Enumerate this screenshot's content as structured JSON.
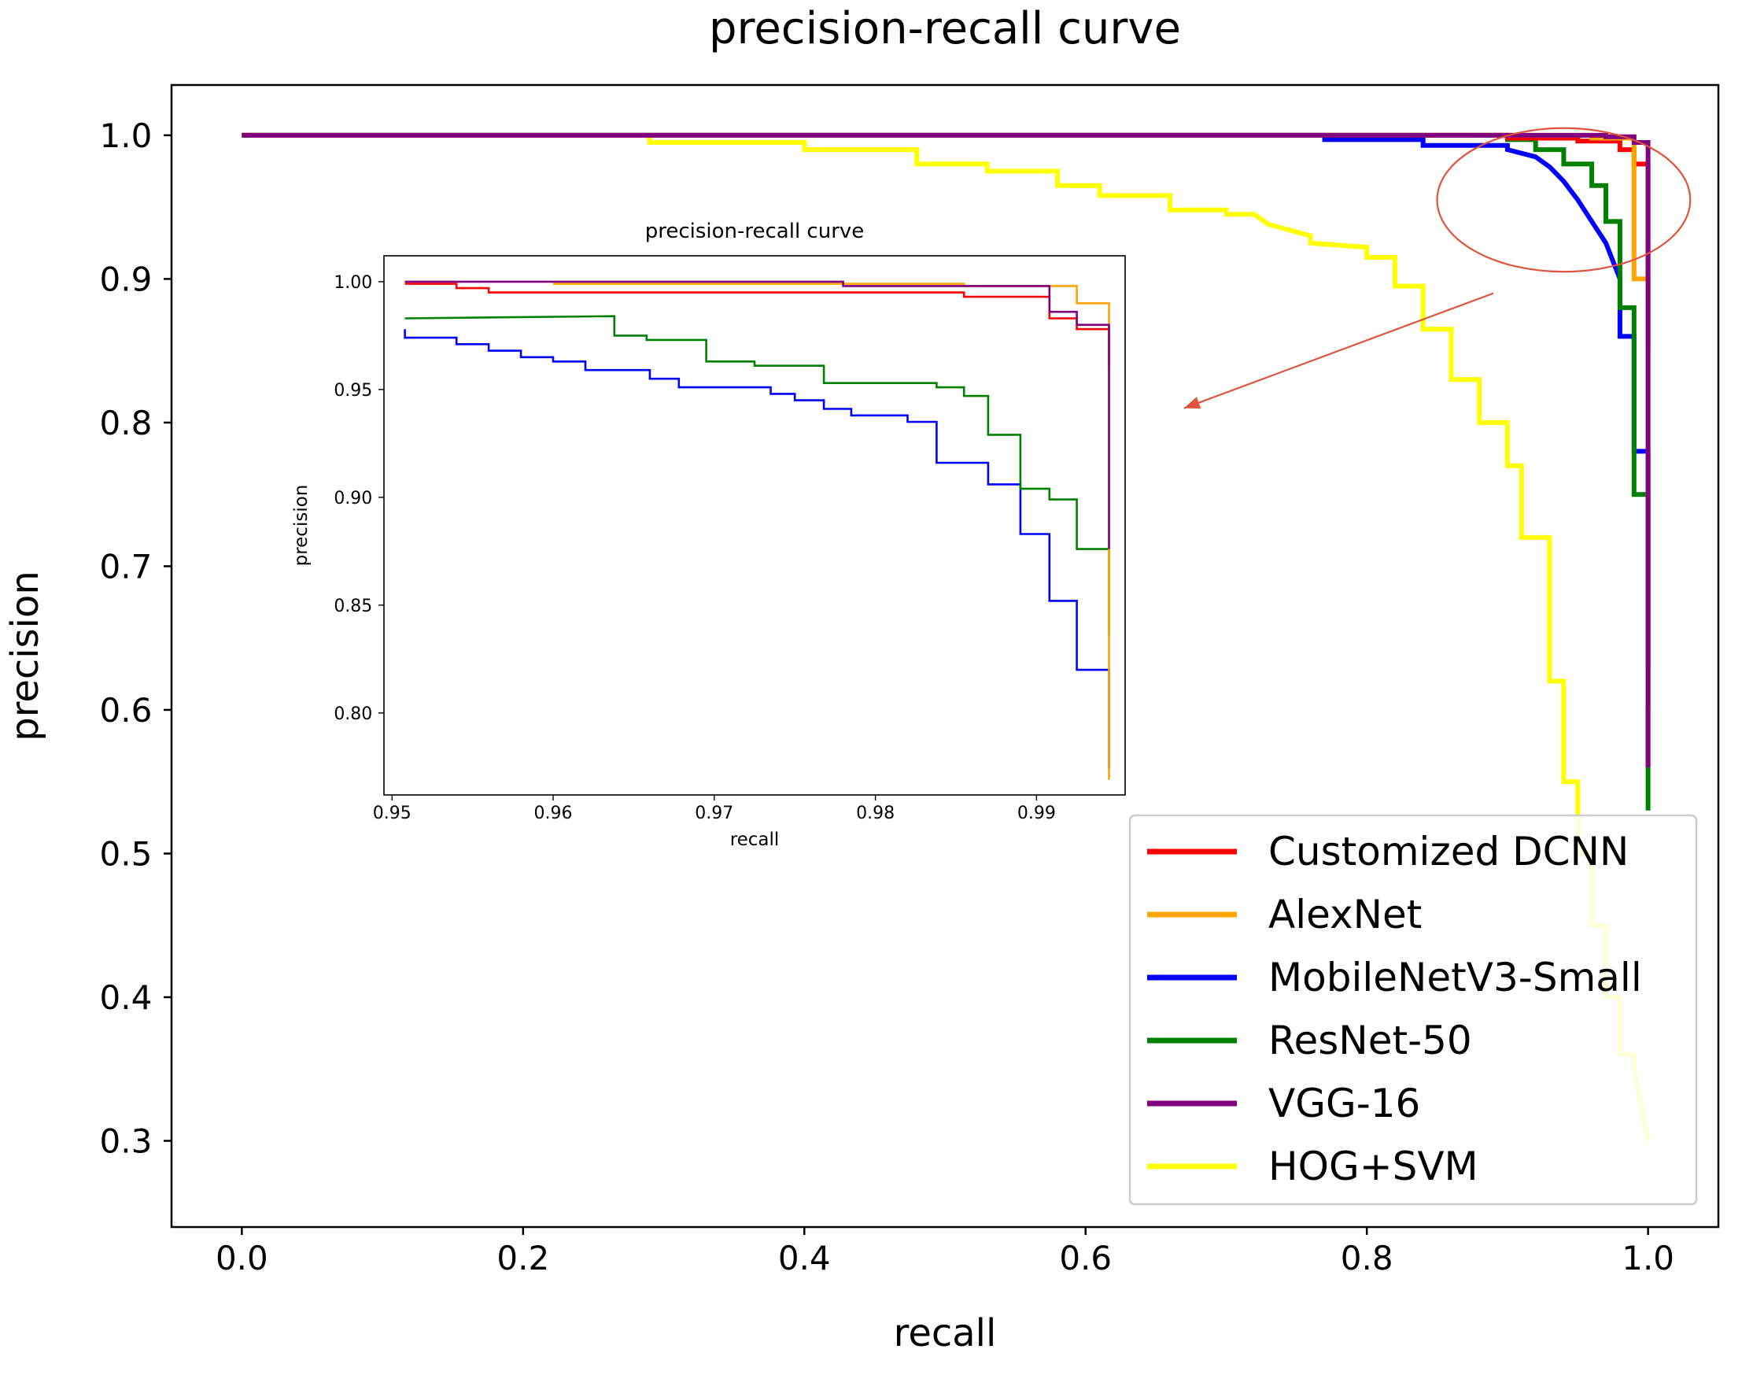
{
  "chart_data": [
    {
      "id": "main",
      "type": "line",
      "title": "precision-recall curve",
      "xlabel": "recall",
      "ylabel": "precision",
      "xlim": [
        -0.05,
        1.05
      ],
      "ylim": [
        0.24,
        1.035
      ],
      "xticks": [
        0.0,
        0.2,
        0.4,
        0.6,
        0.8,
        1.0
      ],
      "xtick_labels": [
        "0.0",
        "0.2",
        "0.4",
        "0.6",
        "0.8",
        "1.0"
      ],
      "yticks": [
        0.3,
        0.4,
        0.5,
        0.6,
        0.7,
        0.8,
        0.9,
        1.0
      ],
      "ytick_labels": [
        "0.3",
        "0.4",
        "0.5",
        "0.6",
        "0.7",
        "0.8",
        "0.9",
        "1.0"
      ],
      "grid": false,
      "legend_position": "lower-right",
      "series": [
        {
          "name": "HOG+SVM",
          "color": "#ffff00",
          "x": [
            0.0,
            0.29,
            0.29,
            0.4,
            0.4,
            0.48,
            0.48,
            0.53,
            0.53,
            0.58,
            0.58,
            0.61,
            0.61,
            0.66,
            0.66,
            0.7,
            0.7,
            0.72,
            0.73,
            0.76,
            0.76,
            0.8,
            0.8,
            0.82,
            0.82,
            0.84,
            0.84,
            0.86,
            0.86,
            0.88,
            0.88,
            0.9,
            0.9,
            0.91,
            0.91,
            0.93,
            0.93,
            0.94,
            0.94,
            0.95,
            0.95,
            0.96,
            0.96,
            0.97,
            0.97,
            0.98,
            0.98,
            0.99,
            0.99,
            1.0
          ],
          "y": [
            1.0,
            1.0,
            0.995,
            0.995,
            0.99,
            0.99,
            0.98,
            0.98,
            0.975,
            0.975,
            0.965,
            0.965,
            0.958,
            0.958,
            0.948,
            0.948,
            0.945,
            0.945,
            0.938,
            0.93,
            0.925,
            0.922,
            0.915,
            0.915,
            0.895,
            0.895,
            0.865,
            0.865,
            0.83,
            0.83,
            0.8,
            0.8,
            0.77,
            0.77,
            0.72,
            0.72,
            0.62,
            0.62,
            0.55,
            0.55,
            0.5,
            0.5,
            0.45,
            0.45,
            0.4,
            0.4,
            0.36,
            0.36,
            0.35,
            0.3
          ]
        },
        {
          "name": "MobileNetV3-Small",
          "color": "#0000ff",
          "x": [
            0.0,
            0.77,
            0.77,
            0.84,
            0.84,
            0.9,
            0.9,
            0.92,
            0.93,
            0.94,
            0.95,
            0.96,
            0.97,
            0.98,
            0.98,
            0.99,
            0.99,
            1.0,
            1.0
          ],
          "y": [
            1.0,
            1.0,
            0.997,
            0.997,
            0.993,
            0.993,
            0.99,
            0.985,
            0.978,
            0.968,
            0.955,
            0.94,
            0.925,
            0.9,
            0.86,
            0.86,
            0.78,
            0.78,
            0.63
          ]
        },
        {
          "name": "ResNet-50",
          "color": "#008000",
          "x": [
            0.0,
            0.9,
            0.9,
            0.92,
            0.92,
            0.94,
            0.94,
            0.96,
            0.96,
            0.97,
            0.97,
            0.98,
            0.98,
            0.99,
            0.99,
            1.0,
            1.0
          ],
          "y": [
            1.0,
            1.0,
            0.997,
            0.997,
            0.99,
            0.99,
            0.98,
            0.98,
            0.965,
            0.965,
            0.94,
            0.94,
            0.88,
            0.88,
            0.75,
            0.75,
            0.53
          ]
        },
        {
          "name": "Customized DCNN",
          "color": "#ff0000",
          "x": [
            0.0,
            0.9,
            0.9,
            0.95,
            0.95,
            0.98,
            0.98,
            0.99,
            0.99,
            1.0,
            1.0
          ],
          "y": [
            1.0,
            1.0,
            0.998,
            0.998,
            0.996,
            0.996,
            0.99,
            0.99,
            0.98,
            0.98,
            0.85
          ]
        },
        {
          "name": "AlexNet",
          "color": "#ffa500",
          "x": [
            0.0,
            0.96,
            0.96,
            0.99,
            0.99,
            1.0,
            1.0
          ],
          "y": [
            1.0,
            1.0,
            0.998,
            0.998,
            0.9,
            0.9,
            0.6
          ]
        },
        {
          "name": "VGG-16",
          "color": "#800080",
          "x": [
            0.0,
            0.97,
            0.97,
            0.99,
            0.99,
            1.0,
            1.0
          ],
          "y": [
            1.0,
            1.0,
            0.999,
            0.999,
            0.995,
            0.995,
            0.56
          ]
        }
      ],
      "annotations": [
        {
          "type": "ellipse",
          "color": "#e0533c",
          "center": [
            0.94,
            0.955
          ],
          "radius_data": [
            0.09,
            0.05
          ]
        },
        {
          "type": "arrow",
          "color": "#e0533c",
          "from": [
            0.89,
            0.89
          ],
          "to": [
            0.67,
            0.81
          ]
        }
      ]
    },
    {
      "id": "inset",
      "type": "line",
      "title": "precision-recall curve",
      "xlabel": "recall",
      "ylabel": "precision",
      "xlim": [
        0.9495,
        0.9955
      ],
      "ylim": [
        0.762,
        1.012
      ],
      "xticks": [
        0.95,
        0.96,
        0.97,
        0.98,
        0.99
      ],
      "xtick_labels": [
        "0.95",
        "0.96",
        "0.97",
        "0.98",
        "0.99"
      ],
      "yticks": [
        0.8,
        0.85,
        0.9,
        0.95,
        1.0
      ],
      "ytick_labels": [
        "0.80",
        "0.85",
        "0.90",
        "0.95",
        "1.00"
      ],
      "grid": false,
      "series": [
        {
          "name": "MobileNetV3-Small",
          "color": "#0000ff",
          "x": [
            0.9508,
            0.9508,
            0.954,
            0.954,
            0.956,
            0.956,
            0.958,
            0.958,
            0.96,
            0.96,
            0.962,
            0.962,
            0.966,
            0.966,
            0.9678,
            0.9678,
            0.9695,
            0.9695,
            0.9735,
            0.9735,
            0.975,
            0.975,
            0.9768,
            0.9768,
            0.9785,
            0.9785,
            0.982,
            0.982,
            0.9838,
            0.9838,
            0.987,
            0.987,
            0.989,
            0.989,
            0.9908,
            0.9908,
            0.9925,
            0.9925,
            0.9945,
            0.9945
          ],
          "y": [
            0.978,
            0.974,
            0.974,
            0.971,
            0.971,
            0.968,
            0.968,
            0.965,
            0.965,
            0.963,
            0.963,
            0.959,
            0.959,
            0.955,
            0.955,
            0.951,
            0.951,
            0.951,
            0.951,
            0.948,
            0.948,
            0.945,
            0.945,
            0.941,
            0.941,
            0.938,
            0.938,
            0.935,
            0.935,
            0.916,
            0.916,
            0.906,
            0.906,
            0.883,
            0.883,
            0.852,
            0.852,
            0.82,
            0.82,
            0.774
          ]
        },
        {
          "name": "ResNet-50",
          "color": "#008000",
          "x": [
            0.9508,
            0.9638,
            0.9638,
            0.9658,
            0.9658,
            0.9695,
            0.9695,
            0.9725,
            0.9725,
            0.9768,
            0.9768,
            0.9838,
            0.9838,
            0.9855,
            0.9855,
            0.987,
            0.987,
            0.989,
            0.989,
            0.9908,
            0.9908,
            0.9925,
            0.9925,
            0.9945,
            0.9945
          ],
          "y": [
            0.983,
            0.984,
            0.975,
            0.975,
            0.973,
            0.973,
            0.963,
            0.963,
            0.961,
            0.961,
            0.953,
            0.953,
            0.951,
            0.951,
            0.947,
            0.947,
            0.929,
            0.929,
            0.904,
            0.904,
            0.899,
            0.899,
            0.876,
            0.876,
            0.836
          ]
        },
        {
          "name": "Customized DCNN",
          "color": "#ff0000",
          "x": [
            0.9508,
            0.954,
            0.954,
            0.956,
            0.956,
            0.9855,
            0.9855,
            0.9908,
            0.9908,
            0.9925,
            0.9925,
            0.9945,
            0.9945
          ],
          "y": [
            0.999,
            0.999,
            0.997,
            0.997,
            0.995,
            0.995,
            0.993,
            0.993,
            0.983,
            0.983,
            0.978,
            0.978,
            0.96
          ]
        },
        {
          "name": "AlexNet",
          "color": "#ffa500",
          "x": [
            0.96,
            0.9855,
            0.9855,
            0.9925,
            0.9925,
            0.9945,
            0.9945
          ],
          "y": [
            0.999,
            0.999,
            0.998,
            0.998,
            0.99,
            0.99,
            0.769
          ]
        },
        {
          "name": "VGG-16",
          "color": "#800080",
          "x": [
            0.9508,
            0.978,
            0.978,
            0.9908,
            0.9908,
            0.9925,
            0.9925,
            0.9945,
            0.9945
          ],
          "y": [
            1.0,
            1.0,
            0.998,
            0.998,
            0.986,
            0.986,
            0.98,
            0.98,
            0.876
          ]
        }
      ]
    }
  ],
  "legend": {
    "items": [
      {
        "label": "Customized DCNN",
        "color": "#ff0000"
      },
      {
        "label": "AlexNet",
        "color": "#ffa500"
      },
      {
        "label": "MobileNetV3-Small",
        "color": "#0000ff"
      },
      {
        "label": "ResNet-50",
        "color": "#008000"
      },
      {
        "label": "VGG-16",
        "color": "#800080"
      },
      {
        "label": "HOG+SVM",
        "color": "#ffff00"
      }
    ]
  }
}
